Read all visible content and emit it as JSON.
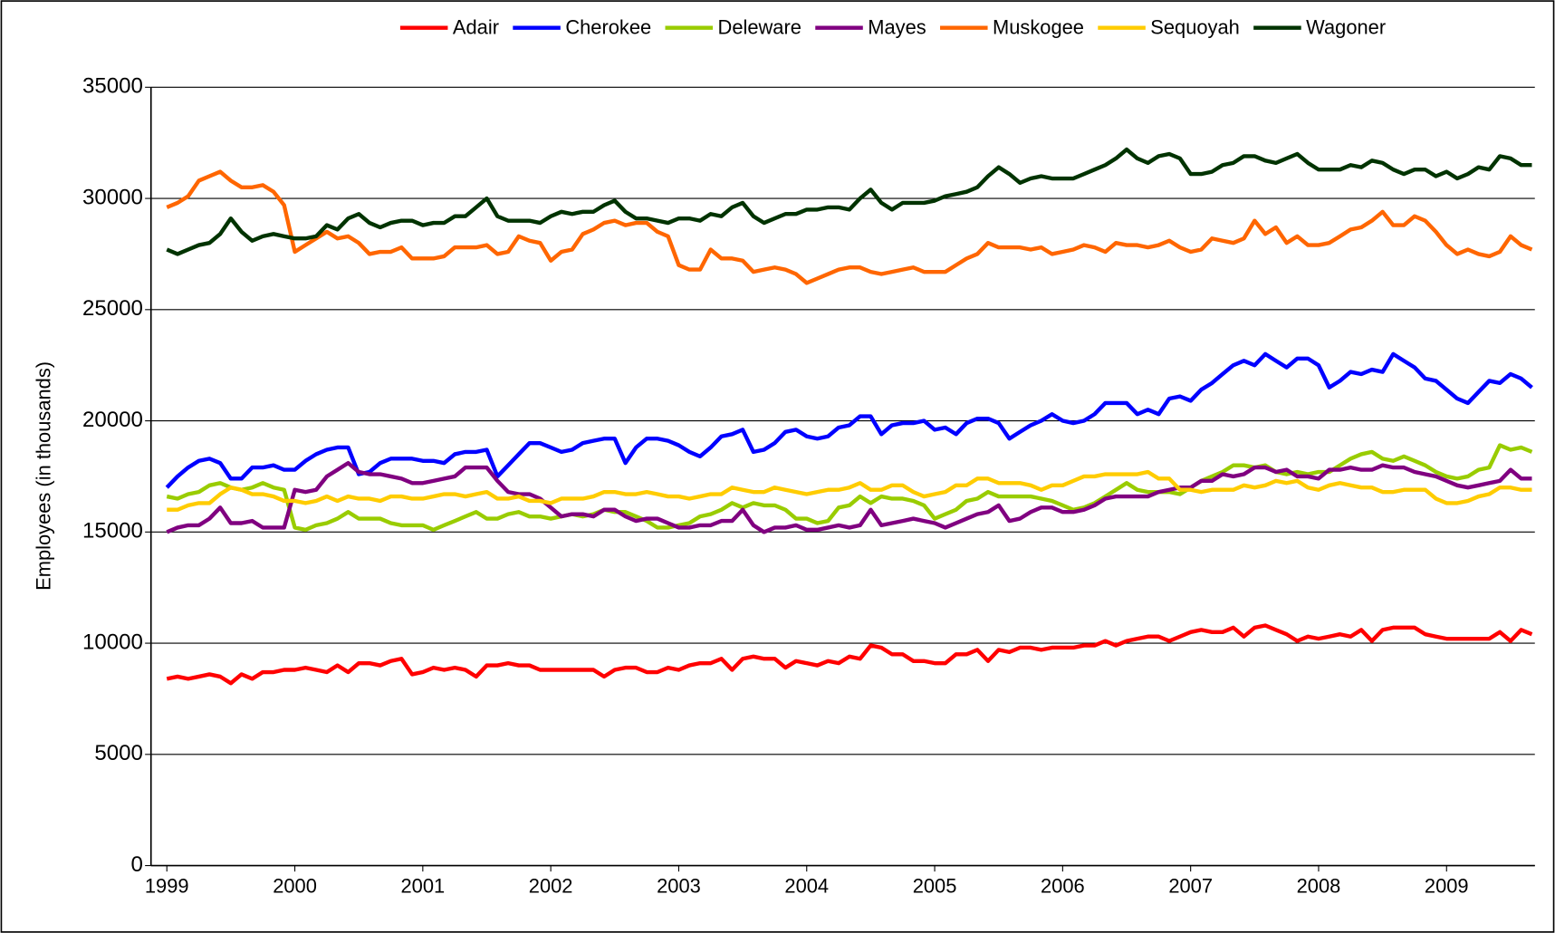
{
  "chart_data": {
    "type": "line",
    "ylabel": "Employees (in thousands)",
    "ylim": [
      0,
      35000
    ],
    "yticks": [
      0,
      5000,
      10000,
      15000,
      20000,
      25000,
      30000,
      35000
    ],
    "grid": true,
    "legend": "top",
    "categories": [
      "1999",
      null,
      null,
      null,
      null,
      null,
      null,
      null,
      null,
      null,
      null,
      null,
      "2000",
      null,
      null,
      null,
      null,
      null,
      null,
      null,
      null,
      null,
      null,
      null,
      "2001",
      null,
      null,
      null,
      null,
      null,
      null,
      null,
      null,
      null,
      null,
      null,
      "2002",
      null,
      null,
      null,
      null,
      null,
      null,
      null,
      null,
      null,
      null,
      null,
      "2003",
      null,
      null,
      null,
      null,
      null,
      null,
      null,
      null,
      null,
      null,
      null,
      "2004",
      null,
      null,
      null,
      null,
      null,
      null,
      null,
      null,
      null,
      null,
      null,
      "2005",
      null,
      null,
      null,
      null,
      null,
      null,
      null,
      null,
      null,
      null,
      null,
      "2006",
      null,
      null,
      null,
      null,
      null,
      null,
      null,
      null,
      null,
      null,
      null,
      "2007",
      null,
      null,
      null,
      null,
      null,
      null,
      null,
      null,
      null,
      null,
      null,
      "2008",
      null,
      null,
      null,
      null,
      null,
      null,
      null,
      null,
      null,
      null,
      null,
      "2009",
      null,
      null,
      null,
      null,
      null,
      null,
      null,
      null
    ],
    "series": [
      {
        "name": "Adair",
        "color": "#ff0000",
        "values": [
          8400,
          8500,
          8400,
          8500,
          8600,
          8500,
          8200,
          8600,
          8400,
          8700,
          8700,
          8800,
          8800,
          8900,
          8800,
          8700,
          9000,
          8700,
          9100,
          9100,
          9000,
          9200,
          9300,
          8600,
          8700,
          8900,
          8800,
          8900,
          8800,
          8500,
          9000,
          9000,
          9100,
          9000,
          9000,
          8800,
          8800,
          8800,
          8800,
          8800,
          8800,
          8500,
          8800,
          8900,
          8900,
          8700,
          8700,
          8900,
          8800,
          9000,
          9100,
          9100,
          9300,
          8800,
          9300,
          9400,
          9300,
          9300,
          8900,
          9200,
          9100,
          9000,
          9200,
          9100,
          9400,
          9300,
          9900,
          9800,
          9500,
          9500,
          9200,
          9200,
          9100,
          9100,
          9500,
          9500,
          9700,
          9200,
          9700,
          9600,
          9800,
          9800,
          9700,
          9800,
          9800,
          9800,
          9900,
          9900,
          10100,
          9900,
          10100,
          10200,
          10300,
          10300,
          10100,
          10300,
          10500,
          10600,
          10500,
          10500,
          10700,
          10300,
          10700,
          10800,
          10600,
          10400,
          10100,
          10300,
          10200,
          10300,
          10400,
          10300,
          10600,
          10100,
          10600,
          10700,
          10700,
          10700,
          10400,
          10300,
          10200,
          10200,
          10200,
          10200,
          10200,
          10500,
          10100,
          10600,
          10400
        ]
      },
      {
        "name": "Cherokee",
        "color": "#0000ff",
        "values": [
          17000,
          17500,
          17900,
          18200,
          18300,
          18100,
          17400,
          17400,
          17900,
          17900,
          18000,
          17800,
          17800,
          18200,
          18500,
          18700,
          18800,
          18800,
          17600,
          17700,
          18100,
          18300,
          18300,
          18300,
          18200,
          18200,
          18100,
          18500,
          18600,
          18600,
          18700,
          17500,
          18000,
          18500,
          19000,
          19000,
          18800,
          18600,
          18700,
          19000,
          19100,
          19200,
          19200,
          18100,
          18800,
          19200,
          19200,
          19100,
          18900,
          18600,
          18400,
          18800,
          19300,
          19400,
          19600,
          18600,
          18700,
          19000,
          19500,
          19600,
          19300,
          19200,
          19300,
          19700,
          19800,
          20200,
          20200,
          19400,
          19800,
          19900,
          19900,
          20000,
          19600,
          19700,
          19400,
          19900,
          20100,
          20100,
          19900,
          19200,
          19500,
          19800,
          20000,
          20300,
          20000,
          19900,
          20000,
          20300,
          20800,
          20800,
          20800,
          20300,
          20500,
          20300,
          21000,
          21100,
          20900,
          21400,
          21700,
          22100,
          22500,
          22700,
          22500,
          23000,
          22700,
          22400,
          22800,
          22800,
          22500,
          21500,
          21800,
          22200,
          22100,
          22300,
          22200,
          23000,
          22700,
          22400,
          21900,
          21800,
          21400,
          21000,
          20800,
          21300,
          21800,
          21700,
          22100,
          21900,
          21500
        ]
      },
      {
        "name": "Deleware",
        "color": "#99cc00",
        "values": [
          16600,
          16500,
          16700,
          16800,
          17100,
          17200,
          17000,
          16900,
          17000,
          17200,
          17000,
          16900,
          15200,
          15100,
          15300,
          15400,
          15600,
          15900,
          15600,
          15600,
          15600,
          15400,
          15300,
          15300,
          15300,
          15100,
          15300,
          15500,
          15700,
          15900,
          15600,
          15600,
          15800,
          15900,
          15700,
          15700,
          15600,
          15700,
          15800,
          15700,
          15800,
          16000,
          15900,
          15900,
          15700,
          15500,
          15200,
          15200,
          15300,
          15400,
          15700,
          15800,
          16000,
          16300,
          16100,
          16300,
          16200,
          16200,
          16000,
          15600,
          15600,
          15400,
          15500,
          16100,
          16200,
          16600,
          16300,
          16600,
          16500,
          16500,
          16400,
          16200,
          15600,
          15800,
          16000,
          16400,
          16500,
          16800,
          16600,
          16600,
          16600,
          16600,
          16500,
          16400,
          16200,
          16000,
          16100,
          16300,
          16600,
          16900,
          17200,
          16900,
          16800,
          16800,
          16800,
          16700,
          17000,
          17300,
          17500,
          17700,
          18000,
          18000,
          17900,
          18000,
          17700,
          17600,
          17700,
          17600,
          17700,
          17700,
          18000,
          18300,
          18500,
          18600,
          18300,
          18200,
          18400,
          18200,
          18000,
          17700,
          17500,
          17400,
          17500,
          17800,
          17900,
          18900,
          18700,
          18800,
          18600
        ]
      },
      {
        "name": "Mayes",
        "color": "#800080",
        "values": [
          15000,
          15200,
          15300,
          15300,
          15600,
          16100,
          15400,
          15400,
          15500,
          15200,
          15200,
          15200,
          16900,
          16800,
          16900,
          17500,
          17800,
          18100,
          17700,
          17600,
          17600,
          17500,
          17400,
          17200,
          17200,
          17300,
          17400,
          17500,
          17900,
          17900,
          17900,
          17300,
          16800,
          16700,
          16700,
          16500,
          16100,
          15700,
          15800,
          15800,
          15700,
          16000,
          16000,
          15700,
          15500,
          15600,
          15600,
          15400,
          15200,
          15200,
          15300,
          15300,
          15500,
          15500,
          16000,
          15300,
          15000,
          15200,
          15200,
          15300,
          15100,
          15100,
          15200,
          15300,
          15200,
          15300,
          16000,
          15300,
          15400,
          15500,
          15600,
          15500,
          15400,
          15200,
          15400,
          15600,
          15800,
          15900,
          16200,
          15500,
          15600,
          15900,
          16100,
          16100,
          15900,
          15900,
          16000,
          16200,
          16500,
          16600,
          16600,
          16600,
          16600,
          16800,
          16900,
          17000,
          17000,
          17300,
          17300,
          17600,
          17500,
          17600,
          17900,
          17900,
          17700,
          17800,
          17500,
          17500,
          17400,
          17800,
          17800,
          17900,
          17800,
          17800,
          18000,
          17900,
          17900,
          17700,
          17600,
          17500,
          17300,
          17100,
          17000,
          17100,
          17200,
          17300,
          17800,
          17400,
          17400
        ]
      },
      {
        "name": "Muskogee",
        "color": "#ff6600",
        "values": [
          29600,
          29800,
          30100,
          30800,
          31000,
          31200,
          30800,
          30500,
          30500,
          30600,
          30300,
          29700,
          27600,
          27900,
          28200,
          28500,
          28200,
          28300,
          28000,
          27500,
          27600,
          27600,
          27800,
          27300,
          27300,
          27300,
          27400,
          27800,
          27800,
          27800,
          27900,
          27500,
          27600,
          28300,
          28100,
          28000,
          27200,
          27600,
          27700,
          28400,
          28600,
          28900,
          29000,
          28800,
          28900,
          28900,
          28500,
          28300,
          27000,
          26800,
          26800,
          27700,
          27300,
          27300,
          27200,
          26700,
          26800,
          26900,
          26800,
          26600,
          26200,
          26400,
          26600,
          26800,
          26900,
          26900,
          26700,
          26600,
          26700,
          26800,
          26900,
          26700,
          26700,
          26700,
          27000,
          27300,
          27500,
          28000,
          27800,
          27800,
          27800,
          27700,
          27800,
          27500,
          27600,
          27700,
          27900,
          27800,
          27600,
          28000,
          27900,
          27900,
          27800,
          27900,
          28100,
          27800,
          27600,
          27700,
          28200,
          28100,
          28000,
          28200,
          29000,
          28400,
          28700,
          28000,
          28300,
          27900,
          27900,
          28000,
          28300,
          28600,
          28700,
          29000,
          29400,
          28800,
          28800,
          29200,
          29000,
          28500,
          27900,
          27500,
          27700,
          27500,
          27400,
          27600,
          28300,
          27900,
          27700
        ]
      },
      {
        "name": "Sequoyah",
        "color": "#ffcc00",
        "values": [
          16000,
          16000,
          16200,
          16300,
          16300,
          16700,
          17000,
          16900,
          16700,
          16700,
          16600,
          16400,
          16400,
          16300,
          16400,
          16600,
          16400,
          16600,
          16500,
          16500,
          16400,
          16600,
          16600,
          16500,
          16500,
          16600,
          16700,
          16700,
          16600,
          16700,
          16800,
          16500,
          16500,
          16600,
          16400,
          16400,
          16300,
          16500,
          16500,
          16500,
          16600,
          16800,
          16800,
          16700,
          16700,
          16800,
          16700,
          16600,
          16600,
          16500,
          16600,
          16700,
          16700,
          17000,
          16900,
          16800,
          16800,
          17000,
          16900,
          16800,
          16700,
          16800,
          16900,
          16900,
          17000,
          17200,
          16900,
          16900,
          17100,
          17100,
          16800,
          16600,
          16700,
          16800,
          17100,
          17100,
          17400,
          17400,
          17200,
          17200,
          17200,
          17100,
          16900,
          17100,
          17100,
          17300,
          17500,
          17500,
          17600,
          17600,
          17600,
          17600,
          17700,
          17400,
          17400,
          16900,
          16900,
          16800,
          16900,
          16900,
          16900,
          17100,
          17000,
          17100,
          17300,
          17200,
          17300,
          17000,
          16900,
          17100,
          17200,
          17100,
          17000,
          17000,
          16800,
          16800,
          16900,
          16900,
          16900,
          16500,
          16300,
          16300,
          16400,
          16600,
          16700,
          17000,
          17000,
          16900,
          16900
        ]
      },
      {
        "name": "Wagoner",
        "color": "#003300",
        "values": [
          27700,
          27500,
          27700,
          27900,
          28000,
          28400,
          29100,
          28500,
          28100,
          28300,
          28400,
          28300,
          28200,
          28200,
          28300,
          28800,
          28600,
          29100,
          29300,
          28900,
          28700,
          28900,
          29000,
          29000,
          28800,
          28900,
          28900,
          29200,
          29200,
          29600,
          30000,
          29200,
          29000,
          29000,
          29000,
          28900,
          29200,
          29400,
          29300,
          29400,
          29400,
          29700,
          29900,
          29400,
          29100,
          29100,
          29000,
          28900,
          29100,
          29100,
          29000,
          29300,
          29200,
          29600,
          29800,
          29200,
          28900,
          29100,
          29300,
          29300,
          29500,
          29500,
          29600,
          29600,
          29500,
          30000,
          30400,
          29800,
          29500,
          29800,
          29800,
          29800,
          29900,
          30100,
          30200,
          30300,
          30500,
          31000,
          31400,
          31100,
          30700,
          30900,
          31000,
          30900,
          30900,
          30900,
          31100,
          31300,
          31500,
          31800,
          32200,
          31800,
          31600,
          31900,
          32000,
          31800,
          31100,
          31100,
          31200,
          31500,
          31600,
          31900,
          31900,
          31700,
          31600,
          31800,
          32000,
          31600,
          31300,
          31300,
          31300,
          31500,
          31400,
          31700,
          31600,
          31300,
          31100,
          31300,
          31300,
          31000,
          31200,
          30900,
          31100,
          31400,
          31300,
          31900,
          31800,
          31500,
          31500
        ]
      }
    ]
  }
}
